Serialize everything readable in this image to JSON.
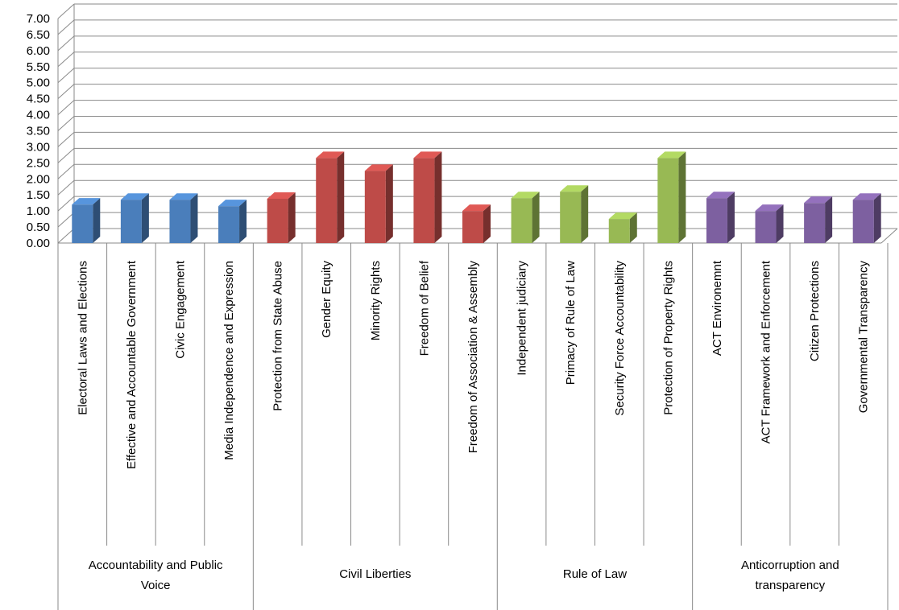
{
  "chart_data": {
    "type": "bar",
    "title": "",
    "xlabel": "",
    "ylabel": "",
    "ylim": [
      0,
      7
    ],
    "yticks": [
      "0.00",
      "0.50",
      "1.00",
      "1.50",
      "2.00",
      "2.50",
      "3.00",
      "3.50",
      "4.00",
      "4.50",
      "5.00",
      "5.50",
      "6.00",
      "6.50",
      "7.00"
    ],
    "grid": true,
    "three_d": true,
    "groups": [
      {
        "name": "Accountability and Public Voice",
        "name_lines": [
          "Accountability and Public",
          "Voice"
        ],
        "color": "#4a7ebb",
        "categories": [
          "Electoral Laws and Elections",
          "Effective and Accountable Government",
          "Civic Engagement",
          "Media Independence and Expression"
        ],
        "values": [
          1.2,
          1.35,
          1.35,
          1.15
        ]
      },
      {
        "name": "Civil Liberties",
        "name_lines": [
          "Civil Liberties"
        ],
        "color": "#be4b48",
        "categories": [
          "Protection from State Abuse",
          "Gender Equity",
          "Minority Rights",
          "Freedom of Belief",
          "Freedom of Association & Assembly"
        ],
        "values": [
          1.38,
          2.65,
          2.25,
          2.65,
          1.0
        ]
      },
      {
        "name": "Rule of Law",
        "name_lines": [
          "Rule of Law"
        ],
        "color": "#98b954",
        "categories": [
          "Independent judiciary",
          "Primacy of Rule of Law",
          "Security Force Accountability",
          "Protection of Property Rights"
        ],
        "values": [
          1.4,
          1.6,
          0.75,
          2.65
        ]
      },
      {
        "name": "Anticorruption and transparency",
        "name_lines": [
          "Anticorruption and",
          "transparency"
        ],
        "color": "#7d60a0",
        "categories": [
          "ACT Environemnt",
          "ACT Framework and Enforcement",
          "Citizen Protections",
          "Governmental Transparency"
        ],
        "values": [
          1.4,
          1.0,
          1.25,
          1.35
        ]
      }
    ]
  }
}
